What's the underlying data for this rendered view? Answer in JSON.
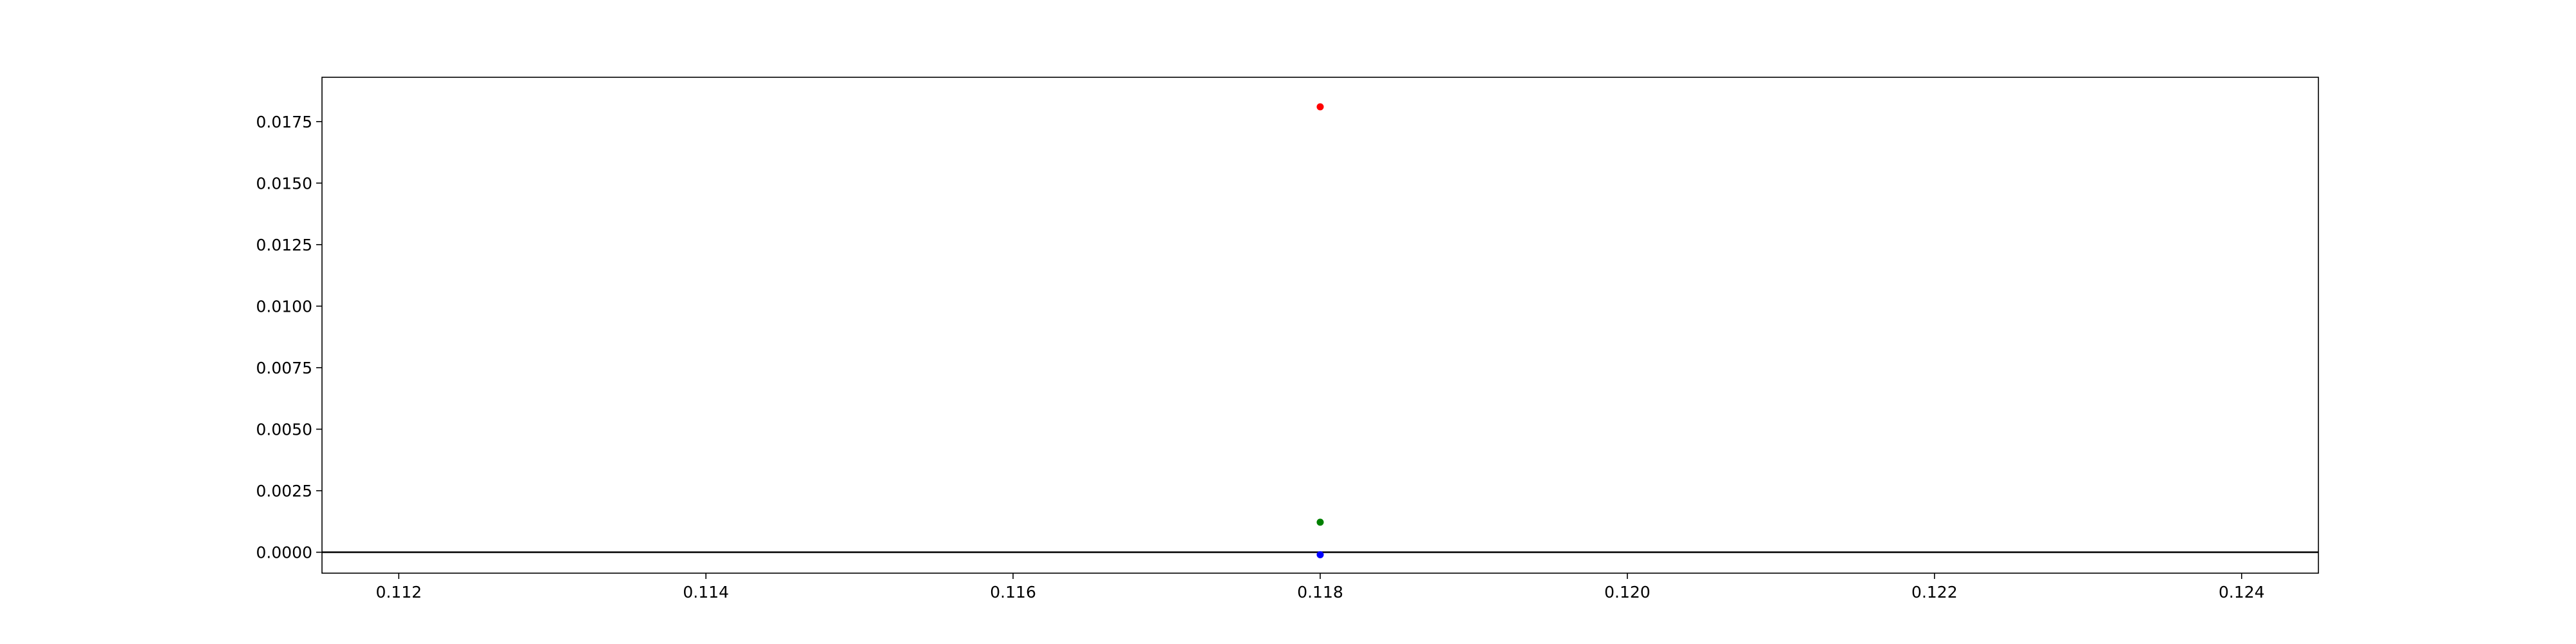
{
  "chart_data": {
    "type": "scatter",
    "title": "",
    "xlabel": "",
    "ylabel": "",
    "xlim": [
      0.1115,
      0.1245
    ],
    "ylim": [
      -0.00085,
      0.0193
    ],
    "x_ticks": [
      {
        "value": 0.112,
        "label": "0.112"
      },
      {
        "value": 0.114,
        "label": "0.114"
      },
      {
        "value": 0.116,
        "label": "0.116"
      },
      {
        "value": 0.118,
        "label": "0.118"
      },
      {
        "value": 0.12,
        "label": "0.120"
      },
      {
        "value": 0.122,
        "label": "0.122"
      },
      {
        "value": 0.124,
        "label": "0.124"
      }
    ],
    "y_ticks": [
      {
        "value": 0.0,
        "label": "0.0000"
      },
      {
        "value": 0.0025,
        "label": "0.0025"
      },
      {
        "value": 0.005,
        "label": "0.0050"
      },
      {
        "value": 0.0075,
        "label": "0.0075"
      },
      {
        "value": 0.01,
        "label": "0.0100"
      },
      {
        "value": 0.0125,
        "label": "0.0125"
      },
      {
        "value": 0.015,
        "label": "0.0150"
      },
      {
        "value": 0.0175,
        "label": "0.0175"
      }
    ],
    "hline": {
      "y": 0.0,
      "color": "#000000"
    },
    "grid": false,
    "series": [
      {
        "color": "#ff0000",
        "points": [
          {
            "x": 0.118,
            "y": 0.0181
          }
        ]
      },
      {
        "color": "#008000",
        "points": [
          {
            "x": 0.118,
            "y": 0.00122
          }
        ]
      },
      {
        "color": "#0000ff",
        "points": [
          {
            "x": 0.118,
            "y": -0.0001
          }
        ]
      }
    ]
  }
}
